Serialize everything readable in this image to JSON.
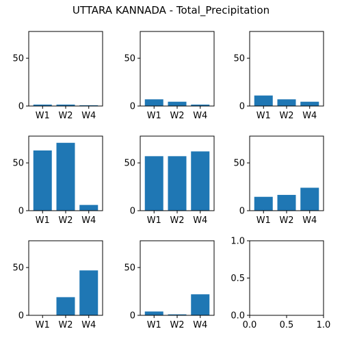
{
  "title": "UTTARA KANNADA - Total_Precipitation",
  "colors": {
    "bar": "#1f77b4",
    "axis": "#000000",
    "background": "#ffffff"
  },
  "chart_data": [
    {
      "type": "bar",
      "categories": [
        "W1",
        "W2",
        "W4"
      ],
      "values": [
        1.5,
        1.5,
        0.8
      ],
      "ylim": [
        0,
        78
      ],
      "yticks": [
        0,
        50
      ]
    },
    {
      "type": "bar",
      "categories": [
        "W1",
        "W2",
        "W4"
      ],
      "values": [
        7,
        4.5,
        1.5
      ],
      "ylim": [
        0,
        78
      ],
      "yticks": [
        0,
        50
      ]
    },
    {
      "type": "bar",
      "categories": [
        "W1",
        "W2",
        "W4"
      ],
      "values": [
        11,
        7,
        4.5
      ],
      "ylim": [
        0,
        78
      ],
      "yticks": [
        0,
        50
      ]
    },
    {
      "type": "bar",
      "categories": [
        "W1",
        "W2",
        "W4"
      ],
      "values": [
        63,
        71,
        6
      ],
      "ylim": [
        0,
        78
      ],
      "yticks": [
        0,
        50
      ]
    },
    {
      "type": "bar",
      "categories": [
        "W1",
        "W2",
        "W4"
      ],
      "values": [
        57,
        57,
        62
      ],
      "ylim": [
        0,
        78
      ],
      "yticks": [
        0,
        50
      ]
    },
    {
      "type": "bar",
      "categories": [
        "W1",
        "W2",
        "W4"
      ],
      "values": [
        14.5,
        16.5,
        24
      ],
      "ylim": [
        0,
        78
      ],
      "yticks": [
        0,
        50
      ]
    },
    {
      "type": "bar",
      "categories": [
        "W1",
        "W2",
        "W4"
      ],
      "values": [
        0,
        19,
        47
      ],
      "ylim": [
        0,
        78
      ],
      "yticks": [
        0,
        50
      ]
    },
    {
      "type": "bar",
      "categories": [
        "W1",
        "W2",
        "W4"
      ],
      "values": [
        4,
        1,
        22
      ],
      "ylim": [
        0,
        78
      ],
      "yticks": [
        0,
        50
      ]
    },
    {
      "type": "empty",
      "categories": [],
      "values": [],
      "xlim": [
        0,
        1
      ],
      "ylim": [
        0,
        1
      ],
      "xticks": [
        "0.0",
        "0.5",
        "1.0"
      ],
      "yticks": [
        "0.0",
        "0.5",
        "1.0"
      ]
    }
  ]
}
